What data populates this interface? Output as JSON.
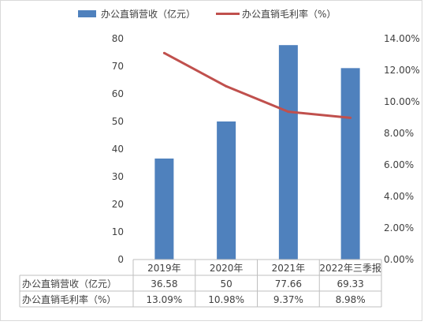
{
  "chart_data": {
    "type": "bar",
    "categories": [
      "2019年",
      "2020年",
      "2021年",
      "2022年三季报"
    ],
    "series": [
      {
        "name": "办公直销营收（亿元）",
        "type": "bar",
        "axis": "left",
        "color": "#4f81bd",
        "values": [
          36.58,
          50,
          77.66,
          69.33
        ]
      },
      {
        "name": "办公直销毛利率（%）",
        "type": "line",
        "axis": "right",
        "color": "#c0504d",
        "values": [
          13.09,
          10.98,
          9.37,
          8.98
        ]
      }
    ],
    "y_left": {
      "min": 0,
      "max": 80,
      "ticks": [
        "0",
        "10",
        "20",
        "30",
        "40",
        "50",
        "60",
        "70",
        "80"
      ]
    },
    "y_right": {
      "min": 0,
      "max": 14,
      "ticks": [
        "0.00%",
        "2.00%",
        "4.00%",
        "6.00%",
        "8.00%",
        "10.00%",
        "12.00%",
        "14.00%"
      ]
    },
    "legend_position": "top",
    "grid": false,
    "data_table": {
      "rows": [
        {
          "label": "办公直销营收（亿元）",
          "values": [
            "36.58",
            "50",
            "77.66",
            "69.33"
          ]
        },
        {
          "label": "办公直销毛利率（%）",
          "values": [
            "13.09%",
            "10.98%",
            "9.37%",
            "8.98%"
          ]
        }
      ]
    }
  }
}
